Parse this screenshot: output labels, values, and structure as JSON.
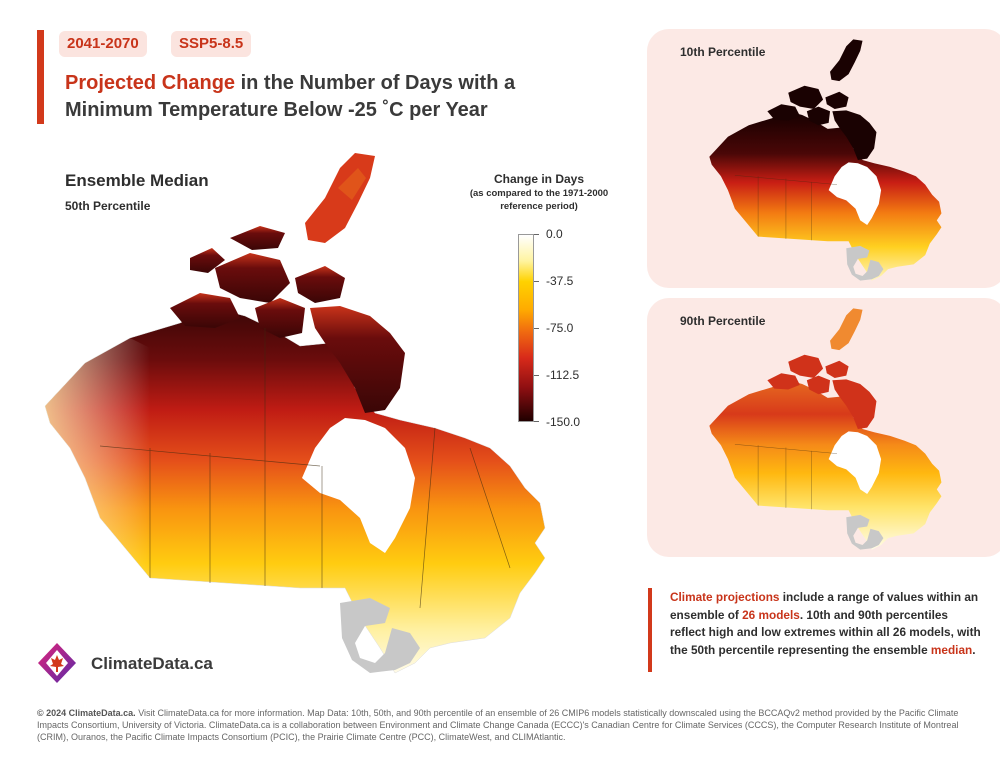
{
  "header": {
    "period": "2041-2070",
    "scenario": "SSP5-8.5",
    "title_highlight": "Projected Change",
    "title_rest": " in the Number of Days with a Minimum Temperature Below -25 ˚C per Year"
  },
  "main_map": {
    "title": "Ensemble Median",
    "subtitle": "50th Percentile"
  },
  "legend": {
    "title": "Change in Days",
    "subtitle": "(as compared to the 1971-2000 reference period)",
    "labels": [
      "0.0",
      "-37.5",
      "-75.0",
      "-112.5",
      "-150.0"
    ],
    "colors": [
      "#ffffff",
      "#ffe600",
      "#f06a10",
      "#b51514",
      "#200000"
    ]
  },
  "panels": {
    "p10": {
      "label": "10th Percentile"
    },
    "p90": {
      "label": "90th Percentile"
    }
  },
  "note": {
    "part1": "Climate projections",
    "part2": " include a range of values within an ensemble of ",
    "part3": "26 models",
    "part4": ". 10th and 90th percentiles reflect high and low extremes within all 26 models, with the 50th percentile representing the ensemble ",
    "part5": "median",
    "part6": "."
  },
  "brand": {
    "name": "ClimateData.ca"
  },
  "footer": {
    "bold": "© 2024 ClimateData.ca.",
    "text": " Visit ClimateData.ca for more information. Map Data: 10th, 50th, and 90th percentile of an ensemble of 26 CMIP6 models statistically downscaled using the BCCAQv2 method provided by the Pacific Climate Impacts Consortium, University of Victoria. ClimateData.ca is a collaboration between Environment and Climate Change Canada (ECCC)'s Canadian Centre for Climate Services (CCCS), the Computer Research Institute of Montreal (CRIM), Ouranos, the Pacific Climate Impacts Consortium (PCIC), the Prairie Climate Centre (PCC), ClimateWest, and CLIMAtlantic."
  }
}
